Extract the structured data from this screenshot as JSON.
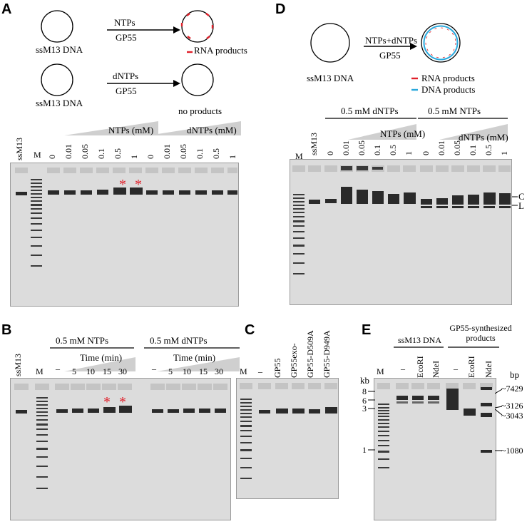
{
  "panels": {
    "A": {
      "letter": "A",
      "scheme1": {
        "template": "ssM13 DNA",
        "arrow_top": "NTPs",
        "arrow_bottom": "GP55",
        "legend": "RNA products"
      },
      "scheme2": {
        "template": "ssM13 DNA",
        "arrow_top": "dNTPs",
        "arrow_bottom": "GP55",
        "result": "no products"
      },
      "groups": [
        {
          "label": "NTPs (mM)"
        },
        {
          "label": "dNTPs (mM)"
        }
      ],
      "lanes": [
        "ssM13",
        "M",
        "0",
        "0.01",
        "0.05",
        "0.1",
        "0.5",
        "1",
        "0",
        "0.01",
        "0.05",
        "0.1",
        "0.5",
        "1"
      ],
      "asterisk": "*"
    },
    "B": {
      "letter": "B",
      "groups": [
        {
          "label": "0.5 mM NTPs",
          "sub": "Time (min)"
        },
        {
          "label": "0.5 mM dNTPs",
          "sub": "Time (min)"
        }
      ],
      "lanes": [
        "ssM13",
        "M",
        "–",
        "5",
        "10",
        "15",
        "30",
        "–",
        "5",
        "10",
        "15",
        "30"
      ],
      "asterisk": "*"
    },
    "C": {
      "letter": "C",
      "lanes": [
        "M",
        "–",
        "GP55",
        "GP55exo-",
        "GP55-D509A",
        "GP55-D949A"
      ]
    },
    "D": {
      "letter": "D",
      "scheme": {
        "template": "ssM13 DNA",
        "arrow_top": "NTPs+dNTPs",
        "arrow_bottom": "GP55",
        "legend_rna": "RNA products",
        "legend_dna": "DNA products"
      },
      "groups": [
        {
          "label": "0.5 mM dNTPs",
          "sub": "NTPs (mM)"
        },
        {
          "label": "0.5 mM NTPs",
          "sub": "dNTPs (mM)"
        }
      ],
      "lanes": [
        "M",
        "ssM13",
        "0",
        "0.01",
        "0.05",
        "0.1",
        "0.5",
        "1",
        "0",
        "0.01",
        "0.05",
        "0.1",
        "0.5",
        "1"
      ],
      "band_labels": [
        "C",
        "L"
      ]
    },
    "E": {
      "letter": "E",
      "groups": [
        {
          "label": "ssM13 DNA"
        },
        {
          "label": "GP55-synthesized products"
        }
      ],
      "lanes": [
        "M",
        "–",
        "EcoRI",
        "NdeI",
        "–",
        "EcoRI",
        "NdeI"
      ],
      "kb_title": "kb",
      "kb_marks": [
        "8",
        "6",
        "3",
        "1"
      ],
      "bp_title": "bp",
      "bp_marks": [
        "~7429",
        "~3126",
        "~3043",
        "~1080"
      ]
    }
  },
  "colors": {
    "rna": "#e0202a",
    "dna": "#2aa8dc",
    "gel": "#dcdcdc"
  }
}
